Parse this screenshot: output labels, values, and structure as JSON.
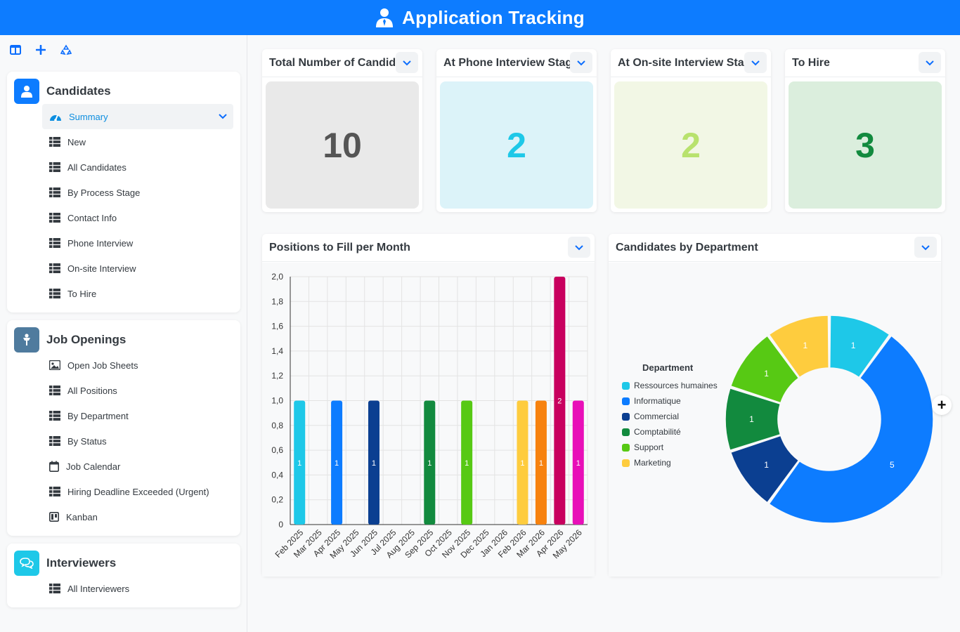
{
  "app": {
    "title": "Application Tracking"
  },
  "candidates": {
    "title": "Candidates",
    "items": [
      {
        "label": "Summary",
        "icon": "dashboard-icon",
        "active": true
      },
      {
        "label": "New",
        "icon": "table-icon"
      },
      {
        "label": "All Candidates",
        "icon": "table-icon"
      },
      {
        "label": "By Process Stage",
        "icon": "table-icon"
      },
      {
        "label": "Contact Info",
        "icon": "table-icon"
      },
      {
        "label": "Phone Interview",
        "icon": "table-icon"
      },
      {
        "label": "On-site Interview",
        "icon": "table-icon"
      },
      {
        "label": "To Hire",
        "icon": "table-icon"
      }
    ]
  },
  "job_openings": {
    "title": "Job Openings",
    "items": [
      {
        "label": "Open Job Sheets",
        "icon": "image-icon"
      },
      {
        "label": "All Positions",
        "icon": "table-icon"
      },
      {
        "label": "By Department",
        "icon": "table-icon"
      },
      {
        "label": "By Status",
        "icon": "table-icon"
      },
      {
        "label": "Job Calendar",
        "icon": "calendar-icon"
      },
      {
        "label": "Hiring Deadline Exceeded (Urgent)",
        "icon": "table-icon"
      },
      {
        "label": "Kanban",
        "icon": "kanban-icon"
      }
    ]
  },
  "interviewers": {
    "title": "Interviewers",
    "items": [
      {
        "label": "All Interviewers",
        "icon": "table-icon"
      }
    ]
  },
  "kpis": [
    {
      "title": "Total Number of Candid",
      "value": "10",
      "bg": "#e9e9e9",
      "color": "#555555"
    },
    {
      "title": "At Phone Interview Stag",
      "value": "2",
      "bg": "#dcf3f9",
      "color": "#1ec8e8"
    },
    {
      "title": "At On-site Interview Sta",
      "value": "2",
      "bg": "#f2f7e5",
      "color": "#b8e26d"
    },
    {
      "title": "To Hire",
      "value": "3",
      "bg": "#dbeedd",
      "color": "#128a3e"
    }
  ],
  "bar_panel": {
    "title": "Positions to Fill per Month"
  },
  "donut_panel": {
    "title": "Candidates by Department"
  },
  "colors": {
    "accent": "#0d7cff",
    "sidebar_icon": "#343a40"
  },
  "chart_data": [
    {
      "type": "bar",
      "title": "Positions to Fill per Month",
      "categories": [
        "Feb 2025",
        "Mar 2025",
        "Apr 2025",
        "May 2025",
        "Jun 2025",
        "Jul 2025",
        "Aug 2025",
        "Sep 2025",
        "Oct 2025",
        "Nov 2025",
        "Dec 2025",
        "Jan 2026",
        "Feb 2026",
        "Mar 2026",
        "Apr 2026",
        "May 2026"
      ],
      "series": [
        {
          "values": [
            1,
            0,
            1,
            0,
            1,
            0,
            0,
            1,
            0,
            1,
            0,
            0,
            1,
            1,
            2,
            1
          ]
        }
      ],
      "bar_colors": [
        "#1ec8e8",
        "#ffffff",
        "#0d7cff",
        "#ffffff",
        "#0b3f91",
        "#ffffff",
        "#ffffff",
        "#128a3e",
        "#ffffff",
        "#57c914",
        "#ffffff",
        "#ffffff",
        "#fecc3e",
        "#f7820e",
        "#c8005e",
        "#e80fb8"
      ],
      "ylim": [
        0,
        2
      ],
      "yticks": [
        "0",
        "0,2",
        "0,4",
        "0,6",
        "0,8",
        "1,0",
        "1,2",
        "1,4",
        "1,6",
        "1,8",
        "2,0"
      ],
      "grid": true
    },
    {
      "type": "pie",
      "title": "Candidates by Department",
      "legend_title": "Department",
      "legend_position": "left",
      "slices": [
        {
          "label": "Ressources humaines",
          "value": 1,
          "color": "#1ec8e8"
        },
        {
          "label": "Informatique",
          "value": 5,
          "color": "#0d7cff"
        },
        {
          "label": "Commercial",
          "value": 1,
          "color": "#0b3f91"
        },
        {
          "label": "Comptabilité",
          "value": 1,
          "color": "#128a3e"
        },
        {
          "label": "Support",
          "value": 1,
          "color": "#57c914"
        },
        {
          "label": "Marketing",
          "value": 1,
          "color": "#fecc3e"
        }
      ]
    }
  ]
}
